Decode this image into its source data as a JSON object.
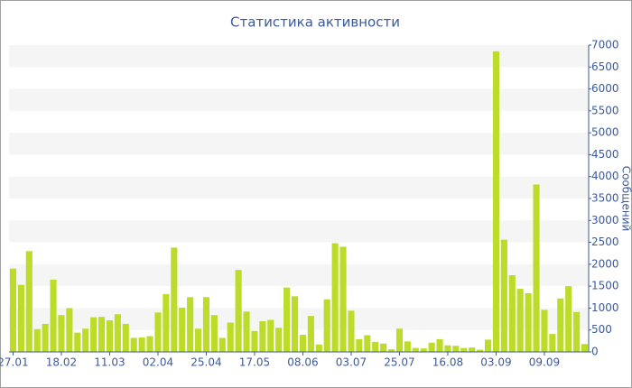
{
  "chart_data": {
    "type": "bar",
    "title": "Статистика активности",
    "y_label": "Сообщений",
    "categories": [
      "27.01",
      null,
      null,
      null,
      null,
      null,
      "18.02",
      null,
      null,
      null,
      null,
      null,
      "11.03",
      null,
      null,
      null,
      null,
      null,
      "02.04",
      null,
      null,
      null,
      null,
      null,
      "25.04",
      null,
      null,
      null,
      null,
      null,
      "17.05",
      null,
      null,
      null,
      null,
      null,
      "08.06",
      null,
      null,
      null,
      null,
      null,
      "03.07",
      null,
      null,
      null,
      null,
      null,
      "25.07",
      null,
      null,
      null,
      null,
      null,
      "16.08",
      null,
      null,
      null,
      null,
      null,
      "03.09",
      null,
      null,
      null,
      null,
      null,
      "09.09",
      null,
      null,
      null,
      null,
      null
    ],
    "values": [
      1900,
      1530,
      2300,
      520,
      640,
      1650,
      840,
      1000,
      440,
      530,
      790,
      800,
      720,
      860,
      640,
      320,
      330,
      360,
      900,
      1320,
      2380,
      1010,
      1250,
      530,
      1250,
      840,
      320,
      670,
      1870,
      920,
      480,
      700,
      730,
      550,
      1470,
      1270,
      390,
      820,
      170,
      1200,
      2480,
      2400,
      940,
      290,
      380,
      230,
      190,
      60,
      530,
      240,
      90,
      80,
      210,
      290,
      150,
      140,
      90,
      100,
      50,
      280,
      6860,
      2560,
      1750,
      1440,
      1340,
      3820,
      960,
      410,
      1220,
      1500,
      910,
      180
    ],
    "color": "#bddc2a",
    "ylim": [
      0,
      7000
    ],
    "yticks": [
      0,
      500,
      1000,
      1500,
      2000,
      2500,
      3000,
      3500,
      4000,
      4500,
      5000,
      5500,
      6000,
      6500,
      7000
    ],
    "band_color": "#f5f5f5",
    "y_axis_side": "right"
  }
}
